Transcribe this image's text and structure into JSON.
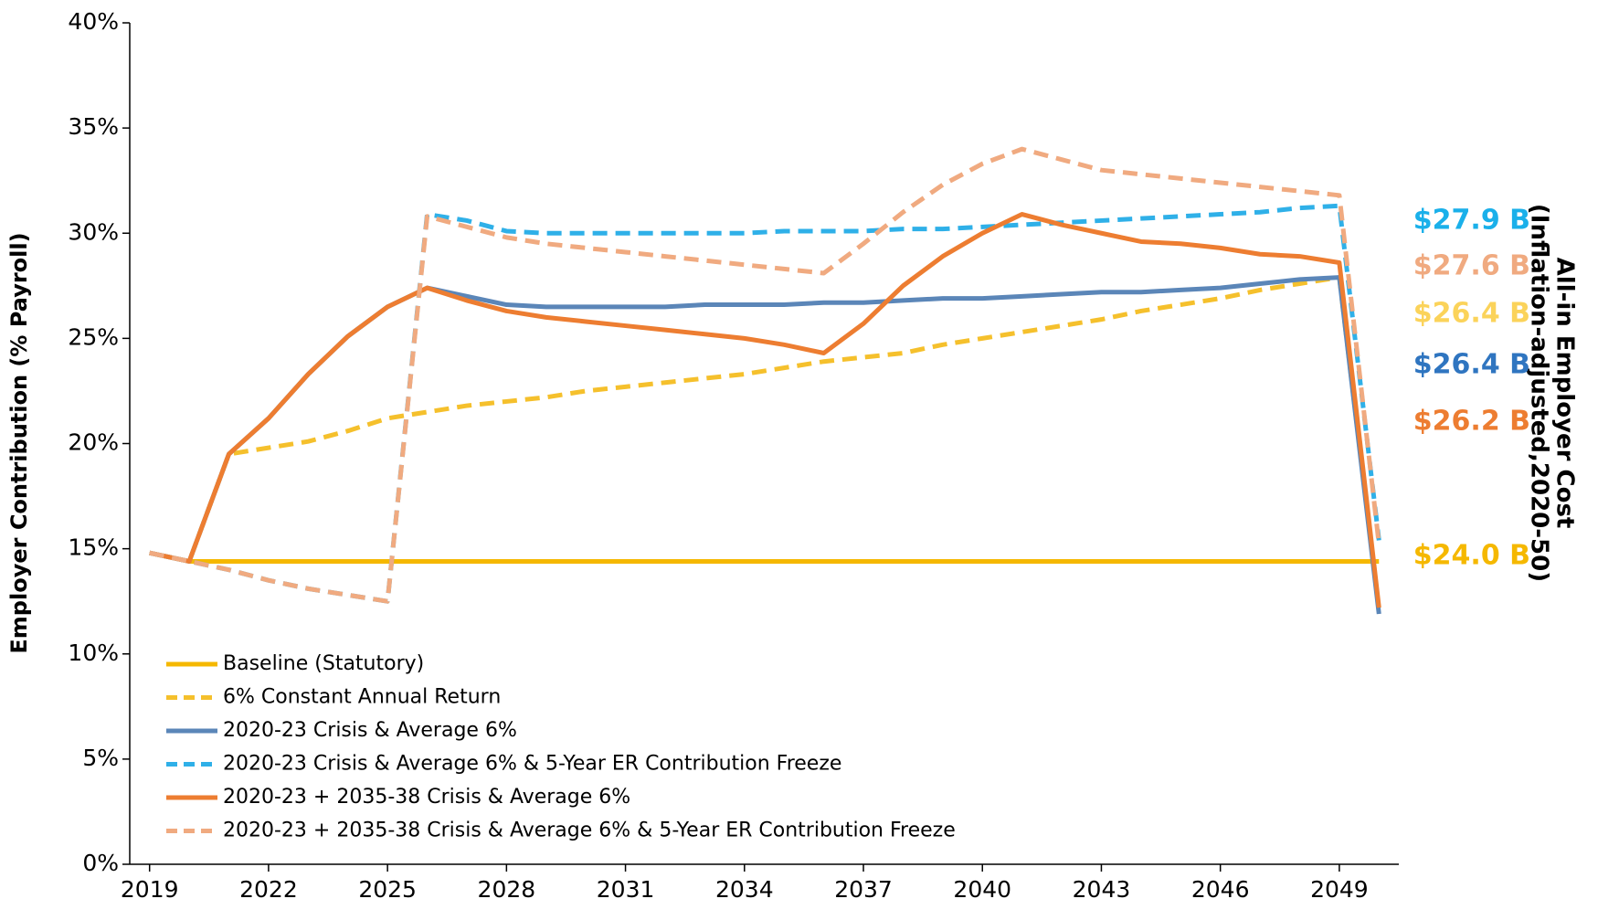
{
  "chart_data": {
    "type": "line",
    "ylabel": "Employer Contribution (% Payroll)",
    "right_title": [
      "All-in Employer Cost",
      "(Inflation-adjusted,2020-50)"
    ],
    "x": [
      2019,
      2020,
      2021,
      2022,
      2023,
      2024,
      2025,
      2026,
      2027,
      2028,
      2029,
      2030,
      2031,
      2032,
      2033,
      2034,
      2035,
      2036,
      2037,
      2038,
      2039,
      2040,
      2041,
      2042,
      2043,
      2044,
      2045,
      2046,
      2047,
      2048,
      2049,
      2050
    ],
    "xlim": [
      2018.5,
      2050.5
    ],
    "xticks": [
      2019,
      2022,
      2025,
      2028,
      2031,
      2034,
      2037,
      2040,
      2043,
      2046,
      2049
    ],
    "ylim": [
      0,
      40
    ],
    "yticks": [
      {
        "value": 0,
        "label": "0%"
      },
      {
        "value": 5,
        "label": "5%"
      },
      {
        "value": 10,
        "label": "10%"
      },
      {
        "value": 15,
        "label": "15%"
      },
      {
        "value": 20,
        "label": "20%"
      },
      {
        "value": 25,
        "label": "25%"
      },
      {
        "value": 30,
        "label": "30%"
      },
      {
        "value": 35,
        "label": "35%"
      },
      {
        "value": 40,
        "label": "40%"
      }
    ],
    "grid": false,
    "legend": "lower left",
    "series": [
      {
        "name": "Baseline (Statutory)",
        "color": "#f5b800",
        "style": "solid",
        "values": [
          14.8,
          14.4,
          14.4,
          14.4,
          14.4,
          14.4,
          14.4,
          14.4,
          14.4,
          14.4,
          14.4,
          14.4,
          14.4,
          14.4,
          14.4,
          14.4,
          14.4,
          14.4,
          14.4,
          14.4,
          14.4,
          14.4,
          14.4,
          14.4,
          14.4,
          14.4,
          14.4,
          14.4,
          14.4,
          14.4,
          14.4,
          14.4
        ]
      },
      {
        "name": "6% Constant Annual Return",
        "color": "#f5c02c",
        "style": "dashed",
        "values": [
          14.8,
          14.4,
          19.5,
          19.8,
          20.1,
          20.6,
          21.2,
          21.5,
          21.8,
          22.0,
          22.2,
          22.5,
          22.7,
          22.9,
          23.1,
          23.3,
          23.6,
          23.9,
          24.1,
          24.3,
          24.7,
          25.0,
          25.3,
          25.6,
          25.9,
          26.3,
          26.6,
          26.9,
          27.3,
          27.6,
          27.9,
          12.1
        ]
      },
      {
        "name": "2020-23 Crisis & Average 6%",
        "color": "#5b86b8",
        "style": "solid",
        "values": [
          14.8,
          14.4,
          19.5,
          21.2,
          23.3,
          25.1,
          26.5,
          27.4,
          27.0,
          26.6,
          26.5,
          26.5,
          26.5,
          26.5,
          26.6,
          26.6,
          26.6,
          26.7,
          26.7,
          26.8,
          26.9,
          26.9,
          27.0,
          27.1,
          27.2,
          27.2,
          27.3,
          27.4,
          27.6,
          27.8,
          27.9,
          11.9
        ]
      },
      {
        "name": "2020-23 Crisis & Average 6% & 5-Year ER Contribution Freeze",
        "color": "#2fb0e8",
        "style": "dashed",
        "values": [
          14.8,
          14.4,
          14.0,
          13.5,
          13.1,
          12.8,
          12.5,
          30.9,
          30.6,
          30.1,
          30.0,
          30.0,
          30.0,
          30.0,
          30.0,
          30.0,
          30.1,
          30.1,
          30.1,
          30.2,
          30.2,
          30.3,
          30.4,
          30.5,
          30.6,
          30.7,
          30.8,
          30.9,
          31.0,
          31.2,
          31.3,
          15.4
        ]
      },
      {
        "name": "2020-23 + 2035-38 Crisis & Average 6%",
        "color": "#ed7d31",
        "style": "solid",
        "values": [
          14.8,
          14.4,
          19.5,
          21.2,
          23.3,
          25.1,
          26.5,
          27.4,
          26.8,
          26.3,
          26.0,
          25.8,
          25.6,
          25.4,
          25.2,
          25.0,
          24.7,
          24.3,
          25.7,
          27.5,
          28.9,
          30.0,
          30.9,
          30.4,
          30.0,
          29.6,
          29.5,
          29.3,
          29.0,
          28.9,
          28.6,
          12.2
        ]
      },
      {
        "name": "2020-23 + 2035-38 Crisis & Average 6% & 5-Year ER Contribution Freeze",
        "color": "#f0aa80",
        "style": "dashed",
        "values": [
          14.8,
          14.4,
          14.0,
          13.5,
          13.1,
          12.8,
          12.5,
          30.8,
          30.3,
          29.8,
          29.5,
          29.3,
          29.1,
          28.9,
          28.7,
          28.5,
          28.3,
          28.1,
          29.5,
          31.0,
          32.3,
          33.3,
          34.0,
          33.5,
          33.0,
          32.8,
          32.6,
          32.4,
          32.2,
          32.0,
          31.8,
          15.2
        ]
      }
    ],
    "annotations": [
      {
        "text": "$27.9 B",
        "color": "#1ab0ea"
      },
      {
        "text": "$27.6 B",
        "color": "#f0aa80"
      },
      {
        "text": "$26.4 B",
        "color": "#fbd35a"
      },
      {
        "text": "$26.4 B",
        "color": "#2f75c0"
      },
      {
        "text": "$26.2 B",
        "color": "#ed7d31"
      },
      {
        "text": "$24.0 B",
        "color": "#f5b800"
      }
    ]
  }
}
